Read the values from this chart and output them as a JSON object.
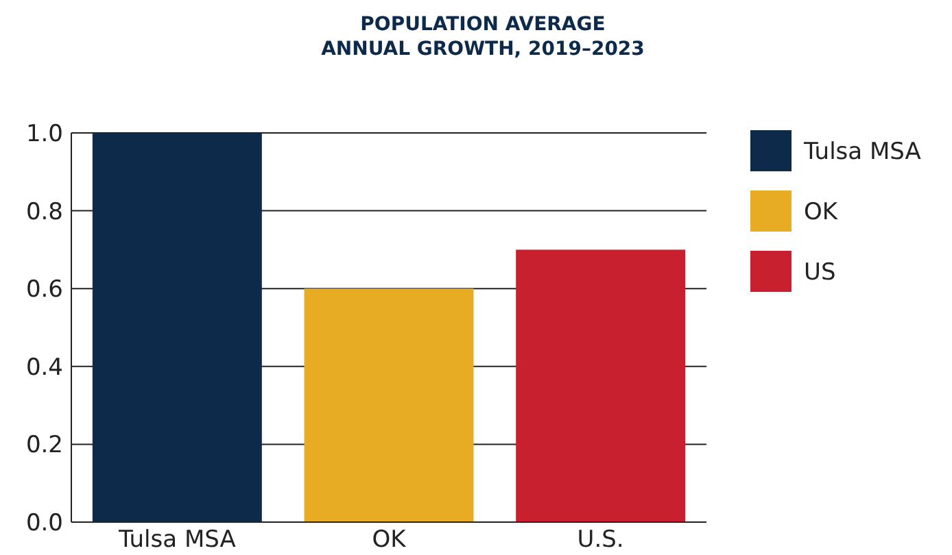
{
  "chart_data": {
    "type": "bar",
    "title": "POPULATION AVERAGE\nANNUAL GROWTH, 2019–2023",
    "categories": [
      "Tulsa MSA",
      "OK",
      "U.S."
    ],
    "series": [
      {
        "name": "Tulsa MSA",
        "color": "#0d2a4a",
        "values": [
          1.0,
          null,
          null
        ]
      },
      {
        "name": "OK",
        "color": "#e8ab24",
        "values": [
          null,
          0.6,
          null
        ]
      },
      {
        "name": "US",
        "color": "#c8202f",
        "values": [
          null,
          null,
          0.7
        ]
      }
    ],
    "ylim": [
      0,
      1.0
    ],
    "yticks": [
      {
        "value": 0,
        "label": "0.0"
      },
      {
        "value": 0.2,
        "label": "0.2"
      },
      {
        "value": 0.4,
        "label": "0.4"
      },
      {
        "value": 0.6,
        "label": "0.6"
      },
      {
        "value": 0.8,
        "label": "0.8"
      },
      {
        "value": 1.0,
        "label": "1.0"
      }
    ],
    "grid": "y",
    "legend": "right"
  }
}
